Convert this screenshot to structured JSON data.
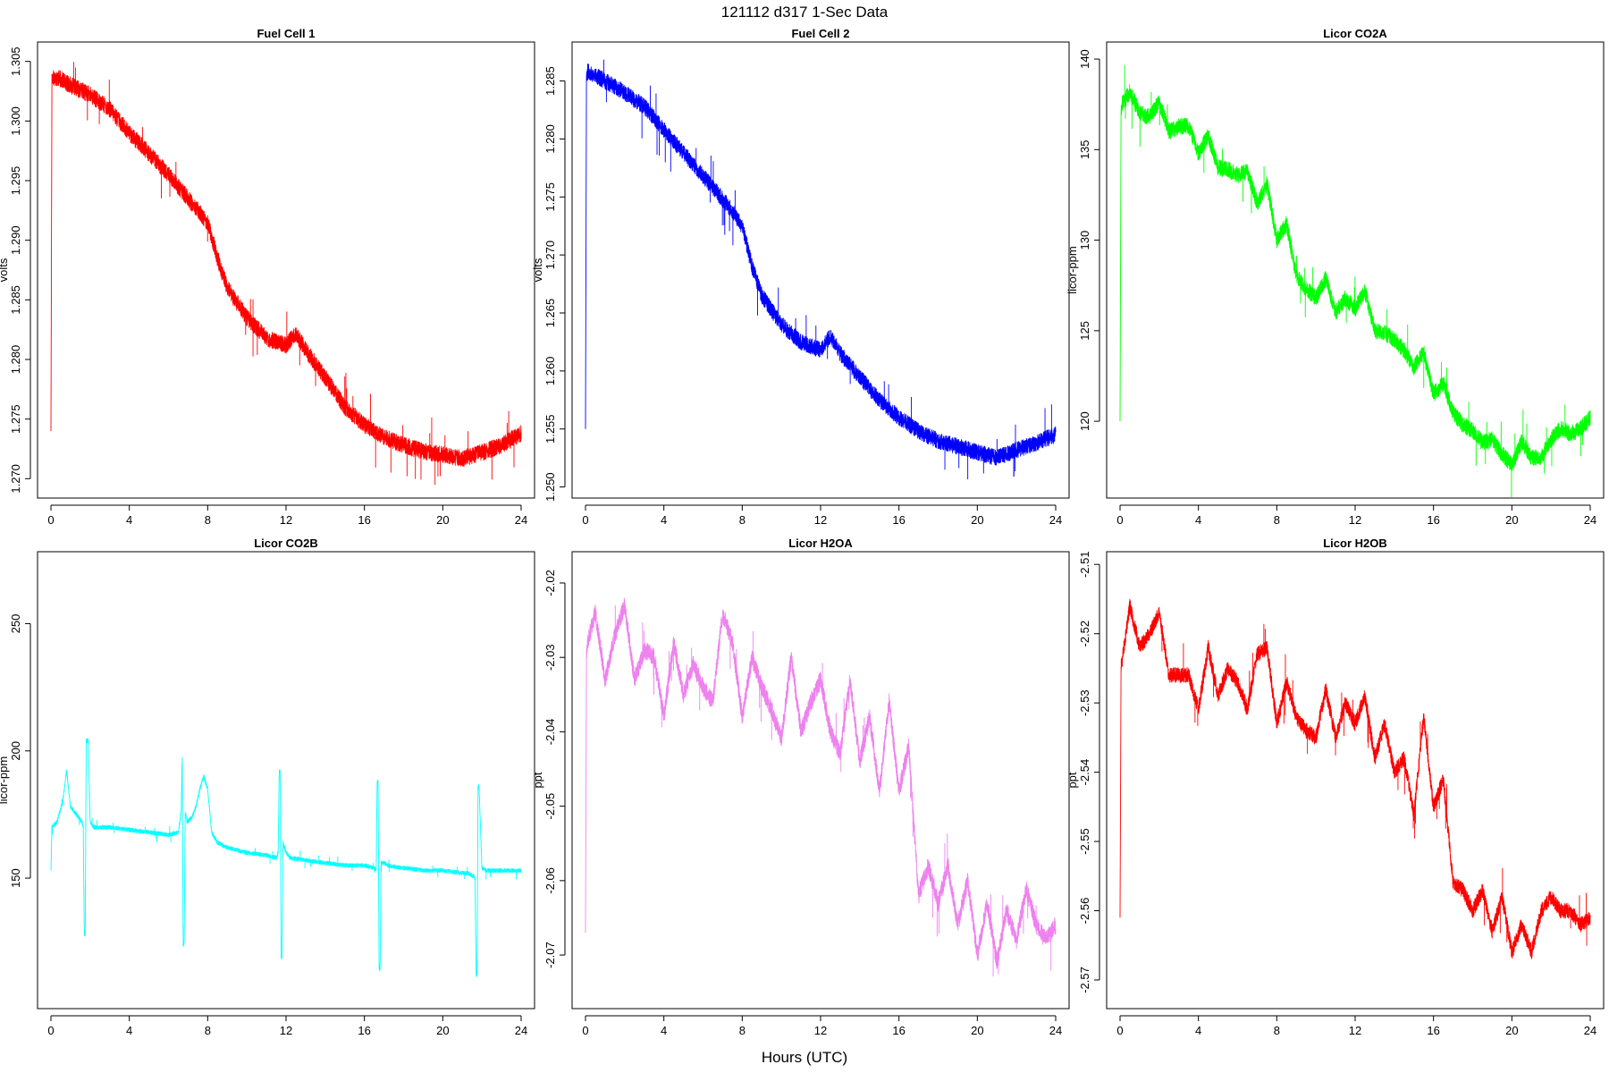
{
  "figure": {
    "title": "121112   d317   1-Sec Data",
    "xlabel": "Hours (UTC)"
  },
  "chart_data": [
    {
      "type": "line",
      "title": "Fuel Cell 1",
      "ylabel": "volts",
      "color": "#ff0000",
      "xlim": [
        0,
        24
      ],
      "ylim": [
        1.2695,
        1.3055
      ],
      "xticks": [
        0,
        4,
        8,
        12,
        16,
        20,
        24
      ],
      "yticks": [
        1.27,
        1.275,
        1.28,
        1.285,
        1.29,
        1.295,
        1.3,
        1.305
      ],
      "ytick_labels": [
        "1.270",
        "1.275",
        "1.280",
        "1.285",
        "1.290",
        "1.295",
        "1.300",
        "1.305"
      ],
      "noise": 0.0007,
      "x": [
        0,
        0.05,
        0.1,
        0.5,
        1,
        2,
        3,
        4,
        5,
        6,
        7,
        7.5,
        8,
        8.5,
        9,
        10,
        11,
        12,
        12.5,
        13,
        14,
        15,
        16,
        17,
        18,
        19,
        20,
        21,
        22,
        23,
        24
      ],
      "y": [
        1.274,
        1.3035,
        1.3037,
        1.3035,
        1.303,
        1.3022,
        1.301,
        1.299,
        1.2973,
        1.2955,
        1.2935,
        1.2925,
        1.2915,
        1.2885,
        1.286,
        1.2835,
        1.2818,
        1.2812,
        1.2822,
        1.2808,
        1.2785,
        1.276,
        1.2745,
        1.2735,
        1.2728,
        1.2723,
        1.272,
        1.2717,
        1.2722,
        1.2728,
        1.2738
      ]
    },
    {
      "type": "line",
      "title": "Fuel Cell 2",
      "ylabel": "volts",
      "color": "#0000ff",
      "xlim": [
        0,
        24
      ],
      "ylim": [
        1.2502,
        1.2872
      ],
      "xticks": [
        0,
        4,
        8,
        12,
        16,
        20,
        24
      ],
      "yticks": [
        1.25,
        1.255,
        1.26,
        1.265,
        1.27,
        1.275,
        1.28,
        1.285
      ],
      "ytick_labels": [
        "1.250",
        "1.255",
        "1.260",
        "1.265",
        "1.270",
        "1.275",
        "1.280",
        "1.285"
      ],
      "noise": 0.0007,
      "x": [
        0,
        0.05,
        0.1,
        0.5,
        1,
        2,
        3,
        4,
        5,
        6,
        7,
        7.5,
        8,
        8.5,
        9,
        10,
        11,
        12,
        12.5,
        13,
        14,
        15,
        16,
        17,
        18,
        19,
        20,
        21,
        22,
        23,
        24
      ],
      "y": [
        1.255,
        1.2855,
        1.2858,
        1.2855,
        1.285,
        1.284,
        1.2828,
        1.2808,
        1.2788,
        1.2768,
        1.2748,
        1.2738,
        1.2725,
        1.269,
        1.2665,
        1.264,
        1.2625,
        1.2618,
        1.263,
        1.2615,
        1.2595,
        1.2575,
        1.256,
        1.2548,
        1.254,
        1.2535,
        1.253,
        1.2525,
        1.2532,
        1.2538,
        1.2545
      ]
    },
    {
      "type": "line",
      "title": "Licor CO2A",
      "ylabel": "licor-ppm",
      "color": "#00ff00",
      "xlim": [
        0,
        24
      ],
      "ylim": [
        116.5,
        140.2
      ],
      "xticks": [
        0,
        4,
        8,
        12,
        16,
        20,
        24
      ],
      "yticks": [
        120,
        125,
        130,
        135,
        140
      ],
      "ytick_labels": [
        "120",
        "125",
        "130",
        "135",
        "140"
      ],
      "noise": 0.45,
      "x": [
        0,
        0.05,
        0.1,
        0.5,
        1,
        1.5,
        2,
        2.5,
        3,
        3.5,
        4,
        4.5,
        5,
        5.5,
        6,
        6.5,
        7,
        7.5,
        8,
        8.5,
        9,
        9.5,
        10,
        10.5,
        11,
        11.5,
        12,
        12.5,
        13,
        13.5,
        14,
        14.5,
        15,
        15.5,
        16,
        16.5,
        17,
        17.5,
        18,
        18.5,
        19,
        19.5,
        20,
        20.5,
        21,
        21.5,
        22,
        22.5,
        23,
        23.5,
        24
      ],
      "y": [
        120,
        137,
        137.5,
        138.2,
        137.0,
        136.8,
        137.6,
        136.0,
        136.3,
        136.3,
        134.8,
        135.8,
        134.0,
        133.9,
        133.6,
        133.8,
        132.0,
        133.1,
        130.0,
        130.9,
        128.0,
        127.3,
        126.8,
        127.9,
        126.0,
        126.8,
        126.2,
        127.2,
        125.0,
        124.9,
        124.5,
        123.9,
        123.0,
        123.8,
        121.5,
        122.1,
        120.5,
        119.8,
        119.5,
        118.8,
        119.0,
        118.2,
        117.6,
        118.9,
        118.0,
        118.0,
        119.0,
        119.6,
        119.3,
        119.6,
        120.2
      ]
    },
    {
      "type": "line",
      "title": "Licor CO2B",
      "ylabel": "licor-ppm",
      "color": "#00ffff",
      "xlim": [
        0,
        24
      ],
      "ylim": [
        104,
        273
      ],
      "xticks": [
        0,
        4,
        8,
        12,
        16,
        20,
        24
      ],
      "yticks": [
        150,
        200,
        250
      ],
      "ytick_labels": [
        "150",
        "200",
        "250"
      ],
      "noise": 0.8,
      "x": [
        0,
        0.05,
        0.3,
        0.6,
        0.8,
        1.0,
        1.4,
        1.6,
        1.65,
        1.7,
        1.75,
        1.8,
        1.9,
        2.0,
        2.2,
        3,
        4,
        5,
        6,
        6.5,
        6.65,
        6.7,
        6.75,
        6.8,
        6.85,
        6.95,
        7.2,
        7.4,
        7.6,
        7.8,
        8.0,
        8.2,
        8.5,
        9,
        10,
        11,
        11.5,
        11.6,
        11.65,
        11.7,
        11.75,
        11.8,
        11.85,
        12.0,
        12.2,
        13,
        14,
        15,
        16,
        16.5,
        16.6,
        16.65,
        16.7,
        16.75,
        16.8,
        16.85,
        17.0,
        17.2,
        18,
        19,
        20,
        21,
        21.3,
        21.5,
        21.6,
        21.65,
        21.7,
        21.75,
        21.8,
        21.85,
        22.0,
        22.2,
        23,
        24
      ],
      "y": [
        153,
        170,
        172,
        180,
        192,
        178,
        174,
        172,
        170,
        128,
        128,
        204,
        204,
        172,
        170,
        170,
        169,
        168,
        167,
        168,
        176,
        199,
        124,
        124,
        176,
        172,
        174,
        178,
        185,
        190,
        185,
        168,
        164,
        162,
        160,
        159,
        158,
        160,
        192,
        192,
        119,
        119,
        164,
        160,
        158,
        157,
        156,
        155,
        155,
        154,
        153,
        188,
        188,
        114,
        114,
        156,
        156,
        155,
        154,
        153,
        153,
        152,
        152,
        151,
        151,
        149,
        112,
        112,
        186,
        186,
        154,
        153,
        153,
        153
      ]
    },
    {
      "type": "line",
      "title": "Licor H2OA",
      "ylabel": "ppt",
      "color": "#ee82ee",
      "xlim": [
        0,
        24
      ],
      "ylim": [
        -2.0754,
        -2.0176
      ],
      "xticks": [
        0,
        4,
        8,
        12,
        16,
        20,
        24
      ],
      "yticks": [
        -2.07,
        -2.06,
        -2.05,
        -2.04,
        -2.03,
        -2.02
      ],
      "ytick_labels": [
        "-2.07",
        "-2.06",
        "-2.05",
        "-2.04",
        "-2.03",
        "-2.02"
      ],
      "noise": 0.0012,
      "x": [
        0,
        0.05,
        0.1,
        0.5,
        1,
        1.5,
        2,
        2.5,
        3,
        3.5,
        4,
        4.5,
        5,
        5.5,
        6,
        6.5,
        7,
        7.5,
        8,
        8.5,
        9,
        9.5,
        10,
        10.5,
        11,
        11.5,
        12,
        12.5,
        13,
        13.5,
        14,
        14.5,
        15,
        15.5,
        16,
        16.5,
        17,
        17.5,
        18,
        18.5,
        19,
        19.5,
        20,
        20.5,
        21,
        21.5,
        22,
        22.5,
        23,
        23.5,
        24
      ],
      "y": [
        -2.067,
        -2.03,
        -2.028,
        -2.024,
        -2.033,
        -2.027,
        -2.023,
        -2.033,
        -2.029,
        -2.03,
        -2.038,
        -2.028,
        -2.035,
        -2.031,
        -2.034,
        -2.036,
        -2.024,
        -2.028,
        -2.038,
        -2.03,
        -2.034,
        -2.037,
        -2.041,
        -2.03,
        -2.04,
        -2.036,
        -2.033,
        -2.04,
        -2.043,
        -2.033,
        -2.044,
        -2.038,
        -2.048,
        -2.036,
        -2.048,
        -2.042,
        -2.062,
        -2.058,
        -2.063,
        -2.058,
        -2.066,
        -2.06,
        -2.07,
        -2.063,
        -2.071,
        -2.064,
        -2.068,
        -2.061,
        -2.066,
        -2.068,
        -2.066
      ]
    },
    {
      "type": "line",
      "title": "Licor H2OB",
      "ylabel": "ppt",
      "color": "#ff0000",
      "xlim": [
        0,
        24
      ],
      "ylim": [
        -2.5722,
        -2.5101
      ],
      "xticks": [
        0,
        4,
        8,
        12,
        16,
        20,
        24
      ],
      "yticks": [
        -2.57,
        -2.56,
        -2.55,
        -2.54,
        -2.53,
        -2.52,
        -2.51
      ],
      "ytick_labels": [
        "-2.57",
        "-2.56",
        "-2.55",
        "-2.54",
        "-2.53",
        "-2.52",
        "-2.51"
      ],
      "noise": 0.0011,
      "x": [
        0,
        0.05,
        0.1,
        0.5,
        1,
        1.5,
        2,
        2.5,
        3,
        3.5,
        4,
        4.5,
        5,
        5.5,
        6,
        6.5,
        7,
        7.5,
        8,
        8.5,
        9,
        9.5,
        10,
        10.5,
        11,
        11.5,
        12,
        12.5,
        13,
        13.5,
        14,
        14.5,
        15,
        15.5,
        16,
        16.5,
        17,
        17.5,
        18,
        18.5,
        19,
        19.5,
        20,
        20.5,
        21,
        21.5,
        22,
        22.5,
        23,
        23.5,
        24
      ],
      "y": [
        -2.561,
        -2.525,
        -2.524,
        -2.516,
        -2.522,
        -2.52,
        -2.517,
        -2.526,
        -2.526,
        -2.526,
        -2.531,
        -2.522,
        -2.529,
        -2.525,
        -2.527,
        -2.531,
        -2.523,
        -2.522,
        -2.533,
        -2.527,
        -2.532,
        -2.534,
        -2.535,
        -2.528,
        -2.535,
        -2.53,
        -2.533,
        -2.529,
        -2.538,
        -2.533,
        -2.54,
        -2.538,
        -2.546,
        -2.532,
        -2.545,
        -2.541,
        -2.556,
        -2.557,
        -2.56,
        -2.557,
        -2.563,
        -2.558,
        -2.566,
        -2.562,
        -2.566,
        -2.56,
        -2.558,
        -2.56,
        -2.56,
        -2.562,
        -2.561
      ]
    }
  ]
}
